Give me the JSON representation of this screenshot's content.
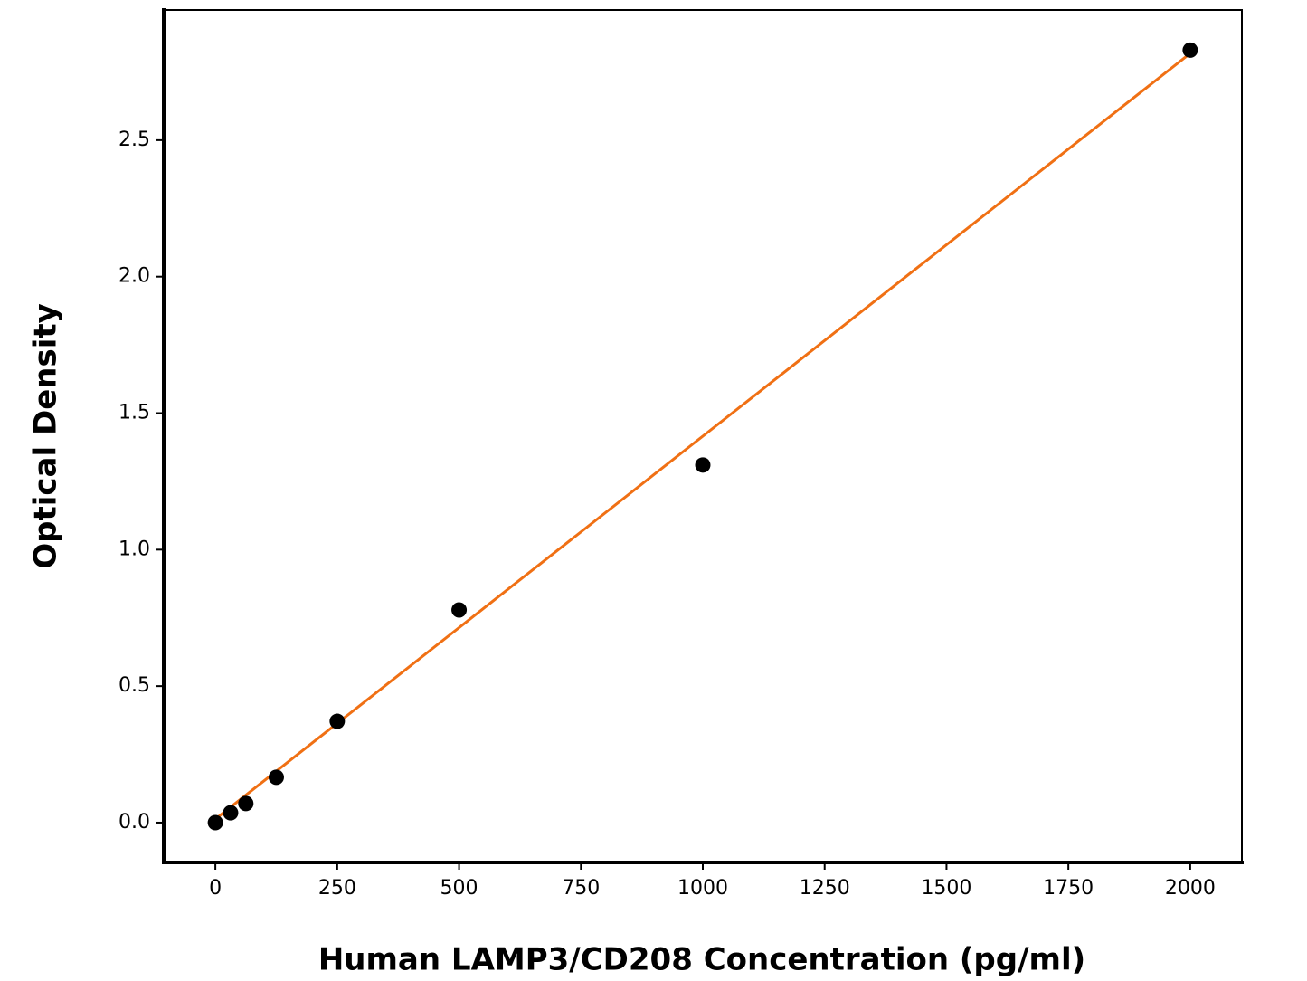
{
  "chart_data": {
    "type": "scatter",
    "xlabel": "Human LAMP3/CD208 Concentration (pg/ml)",
    "ylabel": "Optical Density",
    "x": [
      0,
      31.25,
      62.5,
      125,
      250,
      500,
      1000,
      2000
    ],
    "values": [
      0.0,
      0.036,
      0.07,
      0.166,
      0.371,
      0.779,
      1.31,
      2.83
    ],
    "color": "#000000",
    "fit": {
      "x": [
        0,
        2000
      ],
      "values": [
        0.013,
        2.818
      ],
      "color": "#f07014"
    },
    "xlim": [
      -106,
      2106
    ],
    "ylim": [
      -0.146,
      2.977
    ],
    "xticks": [
      0,
      250,
      500,
      750,
      1000,
      1250,
      1500,
      1750,
      2000
    ],
    "yticks": [
      {
        "value": 0,
        "label": "0.0"
      },
      0.5,
      {
        "value": 1,
        "label": "1.0"
      },
      1.5,
      {
        "value": 2,
        "label": "2.0"
      },
      2.5
    ],
    "grid": false
  }
}
